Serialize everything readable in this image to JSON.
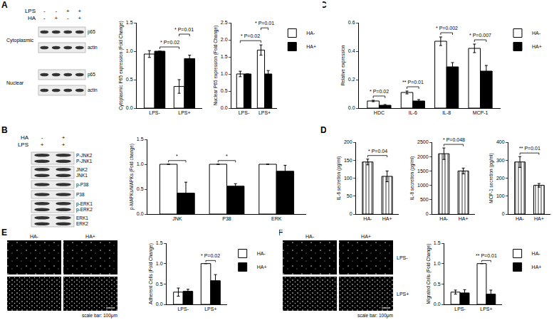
{
  "panel_labels": [
    "A",
    "C",
    "B",
    "D",
    "E",
    "F"
  ],
  "chart_data": [
    {
      "type": "bar",
      "y_label": "Cytoplasmic P65 expression (Fold Change)",
      "categories": [
        "LPS-",
        "LPS+"
      ],
      "series": [
        {
          "color": "#ffffff",
          "values": [
            0.95,
            0.38
          ],
          "errors": [
            0.06,
            0.12
          ]
        },
        {
          "color": "#000000",
          "values": [
            1.0,
            0.87
          ],
          "errors": [
            0,
            0.06
          ]
        }
      ],
      "ylim": [
        0,
        1.5
      ],
      "yticks": [
        {
          "value": 0,
          "label": "0.0"
        },
        {
          "value": 0.5,
          "label": "0.5"
        },
        {
          "value": 1,
          "label": "1.0"
        },
        {
          "value": 1.5,
          "label": "1.5"
        }
      ],
      "grid": false,
      "significance": [
        {
          "from": [
            0,
            1
          ],
          "to": [
            1,
            0
          ],
          "stars": "*",
          "label": "P=0.02"
        },
        {
          "from": [
            1,
            0
          ],
          "to": [
            1,
            1
          ],
          "stars": "*",
          "label": "P=0.01"
        }
      ]
    },
    {
      "type": "bar",
      "y_label": "Nuclear P65 expression (Fold Change)",
      "categories": [
        "LPS-",
        "LPS+"
      ],
      "series": [
        {
          "name": "HA-",
          "color": "#ffffff",
          "values": [
            1.0,
            1.7
          ],
          "errors": [
            0.08,
            0.15
          ]
        },
        {
          "name": "HA+",
          "color": "#000000",
          "values": [
            1.0,
            1.0
          ],
          "errors": [
            0,
            0.1
          ]
        }
      ],
      "ylim": [
        0,
        2.5
      ],
      "yticks": [
        {
          "value": 0,
          "label": "0.0"
        },
        {
          "value": 0.5,
          "label": "0.5"
        },
        {
          "value": 1,
          "label": "1.0"
        },
        {
          "value": 1.5,
          "label": "1.5"
        },
        {
          "value": 2,
          "label": "2.0"
        },
        {
          "value": 2.5,
          "label": "2.5"
        }
      ],
      "grid": false,
      "legend": "upper right",
      "significance": [
        {
          "from": [
            0,
            0
          ],
          "to": [
            1,
            0
          ],
          "stars": "*",
          "label": "P=0.02"
        },
        {
          "from": [
            1,
            0
          ],
          "to": [
            1,
            1
          ],
          "stars": "*",
          "label": "P=0.01"
        }
      ]
    },
    {
      "type": "bar",
      "y_label": "Relative expression",
      "categories": [
        "HDC",
        "IL-6",
        "IL-8",
        "MCP-1"
      ],
      "series": [
        {
          "name": "HA-",
          "color": "#ffffff",
          "values": [
            0.05,
            0.11,
            0.47,
            0.42
          ],
          "errors": [
            0.005,
            0.01,
            0.03,
            0.03
          ]
        },
        {
          "name": "HA+",
          "color": "#000000",
          "values": [
            0.02,
            0.05,
            0.29,
            0.26
          ],
          "errors": [
            0.005,
            0.01,
            0.03,
            0.04
          ]
        }
      ],
      "ylim": [
        0,
        0.6
      ],
      "yticks": [
        {
          "value": 0,
          "label": "0.0"
        },
        {
          "value": 0.2,
          "label": "0.2"
        },
        {
          "value": 0.4,
          "label": "0.4"
        },
        {
          "value": 0.6,
          "label": "0.6"
        }
      ],
      "grid": false,
      "legend": "upper right",
      "significance": [
        {
          "from": [
            0,
            0
          ],
          "to": [
            0,
            1
          ],
          "stars": "*",
          "label": "P=0.02"
        },
        {
          "from": [
            1,
            0
          ],
          "to": [
            1,
            1
          ],
          "stars": "**",
          "label": "P=0.01"
        },
        {
          "from": [
            2,
            0
          ],
          "to": [
            2,
            1
          ],
          "stars": "*",
          "label": "P=0.002"
        },
        {
          "from": [
            3,
            0
          ],
          "to": [
            3,
            1
          ],
          "stars": "*",
          "label": "P=0.007"
        }
      ]
    },
    {
      "type": "bar",
      "y_label": "p-MAPKs/MAPKs (Fold change)",
      "categories": [
        "JNK",
        "P38",
        "ERK"
      ],
      "series": [
        {
          "color": "#ffffff",
          "values": [
            1,
            1,
            1
          ],
          "errors": [
            0,
            0,
            0
          ]
        },
        {
          "color": "#000000",
          "values": [
            0.42,
            0.56,
            0.86
          ],
          "errors": [
            0.22,
            0.05,
            0.12
          ]
        }
      ],
      "ylim": [
        0,
        1.5
      ],
      "yticks": [
        {
          "value": 0,
          "label": "0.0"
        },
        {
          "value": 0.5,
          "label": "0.5"
        },
        {
          "value": 1,
          "label": "1.0"
        },
        {
          "value": 1.5,
          "label": "1.5"
        }
      ],
      "grid": false,
      "significance": [
        {
          "from": [
            0,
            0
          ],
          "to": [
            0,
            1
          ],
          "stars": "*"
        },
        {
          "from": [
            1,
            0
          ],
          "to": [
            1,
            1
          ],
          "stars": "*"
        }
      ]
    },
    {
      "type": "bar",
      "y_label": "IL-6 secretion (pg/ml)",
      "categories": [
        "HA-",
        "HA+"
      ],
      "series": [
        {
          "color": "#e0e0e0",
          "marker": "hatched",
          "values": [
            145,
            105
          ],
          "errors": [
            8,
            15
          ]
        }
      ],
      "ylim": [
        0,
        200
      ],
      "yticks": [
        0,
        50,
        100,
        150,
        200
      ],
      "grid": false,
      "significance": [
        {
          "from": [
            0,
            0
          ],
          "to": [
            1,
            0
          ],
          "stars": "*",
          "label": "P=0.04"
        }
      ]
    },
    {
      "type": "bar",
      "y_label": "IL-8 secretion (pg/ml)",
      "categories": [
        "HA-",
        "HA+"
      ],
      "series": [
        {
          "color": "#e0e0e0",
          "marker": "hatched",
          "values": [
            2100,
            1500
          ],
          "errors": [
            200,
            100
          ]
        }
      ],
      "ylim": [
        0,
        2500
      ],
      "yticks": [
        0,
        500,
        1000,
        1500,
        2000,
        2500
      ],
      "grid": false,
      "significance": [
        {
          "from": [
            0,
            0
          ],
          "to": [
            1,
            0
          ],
          "stars": "*",
          "label": "P=0.048"
        }
      ]
    },
    {
      "type": "bar",
      "y_label": "MCP-1 secretion (pg/ml)",
      "categories": [
        "HA-",
        "HA+"
      ],
      "series": [
        {
          "color": "#e0e0e0",
          "marker": "hatched",
          "values": [
            290,
            160
          ],
          "errors": [
            30,
            10
          ]
        }
      ],
      "ylim": [
        0,
        400
      ],
      "yticks": [
        0,
        100,
        200,
        300,
        400
      ],
      "grid": false,
      "significance": [
        {
          "from": [
            0,
            0
          ],
          "to": [
            1,
            0
          ],
          "stars": "**",
          "label": "P=0.01"
        }
      ]
    },
    {
      "type": "bar",
      "y_label": "Adherent Cells (Fold Change)",
      "categories": [
        "LPS-",
        "LPS+"
      ],
      "series": [
        {
          "name": "HA-",
          "color": "#ffffff",
          "values": [
            0.3,
            1.0
          ],
          "errors": [
            0.1,
            0
          ]
        },
        {
          "name": "HA+",
          "color": "#000000",
          "values": [
            0.32,
            0.58
          ],
          "errors": [
            0.05,
            0.15
          ]
        }
      ],
      "ylim": [
        0,
        1.5
      ],
      "yticks": [
        {
          "value": 0,
          "label": "0.0"
        },
        {
          "value": 0.5,
          "label": "0.5"
        },
        {
          "value": 1,
          "label": "1.0"
        },
        {
          "value": 1.5,
          "label": "1.5"
        }
      ],
      "grid": false,
      "legend": "upper right",
      "significance": [
        {
          "from": [
            1,
            0
          ],
          "to": [
            1,
            1
          ],
          "stars": "*",
          "label": "P=0.02"
        }
      ]
    },
    {
      "type": "bar",
      "y_label": "Migrated Cells (Fold Change)",
      "categories": [
        "LPS-",
        "LPS+"
      ],
      "series": [
        {
          "name": "HA-",
          "color": "#ffffff",
          "values": [
            0.3,
            1.0
          ],
          "errors": [
            0.05,
            0
          ]
        },
        {
          "name": "HA+",
          "color": "#000000",
          "values": [
            0.28,
            0.25
          ],
          "errors": [
            0.08,
            0.1
          ]
        }
      ],
      "ylim": [
        0,
        1.5
      ],
      "yticks": [
        {
          "value": 0,
          "label": "0.0"
        },
        {
          "value": 0.5,
          "label": "0.5"
        },
        {
          "value": 1,
          "label": "1.0"
        },
        {
          "value": 1.5,
          "label": "1.5"
        }
      ],
      "grid": false,
      "legend": "upper right",
      "significance": [
        {
          "from": [
            1,
            0
          ],
          "to": [
            1,
            1
          ],
          "stars": "**",
          "label": "P=0.01"
        }
      ]
    }
  ],
  "blots": [
    {
      "header": [
        {
          "label": "LPS",
          "marks": [
            "-",
            "-",
            "+",
            "+"
          ]
        },
        {
          "label": "HA",
          "marks": [
            "-",
            "+",
            "-",
            "+"
          ]
        }
      ],
      "sections": [
        {
          "label": "Cytoplasmic",
          "strips": [
            [
              "p65"
            ],
            [
              "actin"
            ]
          ]
        },
        {
          "label": "Nuclear",
          "strips": [
            [
              "p65"
            ],
            [
              "actin"
            ]
          ]
        }
      ]
    },
    {
      "header": [
        {
          "label": "HA",
          "marks": [
            "-",
            "+"
          ]
        },
        {
          "label": "LPS",
          "marks": [
            "+",
            "+"
          ]
        }
      ],
      "sections": [
        {
          "strips": [
            [
              "P-JNK2",
              "P-JNK1"
            ],
            [
              "JNK2",
              "JNK1"
            ],
            [
              "p-P38"
            ],
            [
              "P38"
            ],
            [
              "p-ERK1",
              "p-ERK2"
            ],
            [
              "ERK1",
              "ERK2"
            ]
          ]
        }
      ]
    }
  ],
  "micrographs": [
    {
      "columns": [
        "HA-",
        "HA+"
      ],
      "scale_bar": "scale bar: 100μm"
    },
    {
      "columns": [
        "HA-",
        "HA+"
      ],
      "rows": [
        "LPS-",
        "LPS+"
      ],
      "scale_bar": "scale bar: 100μm"
    }
  ]
}
